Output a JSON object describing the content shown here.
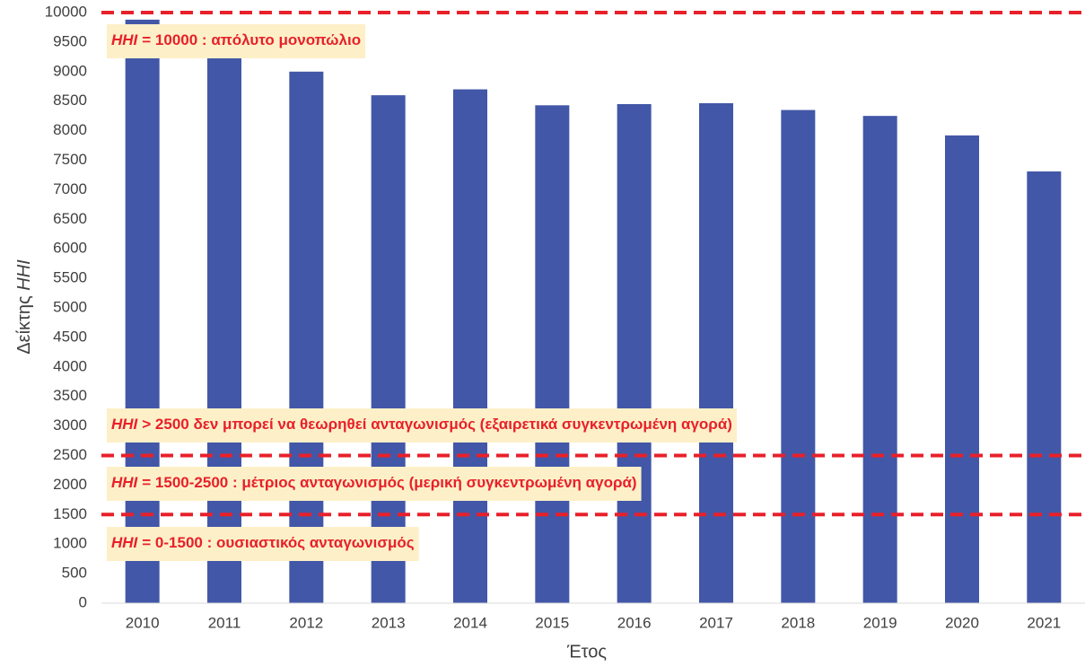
{
  "chart_data": {
    "type": "bar",
    "categories": [
      "2010",
      "2011",
      "2012",
      "2013",
      "2014",
      "2015",
      "2016",
      "2017",
      "2018",
      "2019",
      "2020",
      "2021"
    ],
    "values": [
      9880,
      9400,
      9000,
      8600,
      8700,
      8430,
      8450,
      8465,
      8350,
      8250,
      7920,
      7310
    ],
    "color": "#4257a7",
    "ylim": [
      0,
      10000
    ],
    "yticks": [
      0,
      500,
      1000,
      1500,
      2000,
      2500,
      3000,
      3500,
      4000,
      4500,
      5000,
      5500,
      6000,
      6500,
      7000,
      7500,
      8000,
      8500,
      9000,
      9500,
      10000
    ],
    "x_label": "Έτος",
    "y_label": {
      "text": "Δείκτης",
      "italic": "HHI"
    },
    "reference_lines": [
      10000,
      2500,
      1500
    ],
    "reference_color": "#e8202a",
    "annotations": [
      {
        "italic": "HHI",
        "text": "= 10000 : απόλυτο μονοπώλιο"
      },
      {
        "italic": "HHI",
        "text": "> 2500 δεν μπορεί να θεωρηθεί ανταγωνισμός (εξαιρετικά συγκεντρωμένη αγορά)"
      },
      {
        "italic": "HHI",
        "text": "= 1500-2500 : μέτριος ανταγωνισμός (μερική συγκεντρωμένη αγορά)"
      },
      {
        "italic": "HHI",
        "text": "= 0-1500 : ουσιαστικός ανταγωνισμός"
      }
    ]
  }
}
